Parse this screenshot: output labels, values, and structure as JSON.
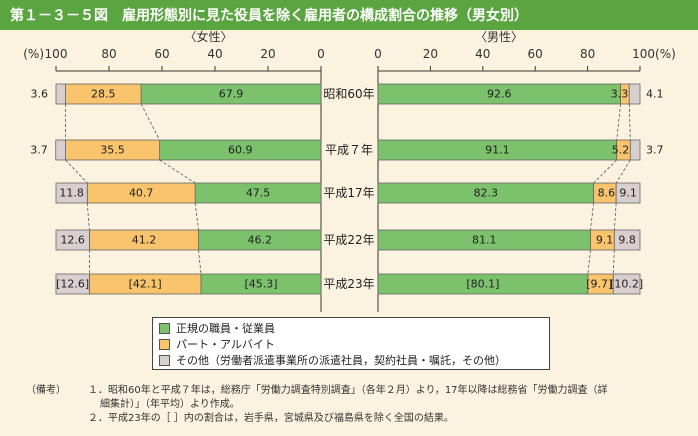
{
  "title": "第１－３－５図　雇用形態別に見た役員を除く雇用者の構成割合の推移（男女別）",
  "chart_data": {
    "type": "bar",
    "orientation": "horizontal-stacked",
    "categories": [
      "昭和60年",
      "平成７年",
      "平成17年",
      "平成22年",
      "平成23年"
    ],
    "female": {
      "panel_label": "〈女性〉",
      "axis_ticks": [
        "100",
        "80",
        "60",
        "40",
        "20",
        "0"
      ],
      "axis_unit": "(%)",
      "series": [
        {
          "name": "正規の職員・従業員",
          "values": [
            67.9,
            60.9,
            47.5,
            46.2,
            45.3
          ]
        },
        {
          "name": "パート・アルバイト",
          "values": [
            28.5,
            35.5,
            40.7,
            41.2,
            42.1
          ]
        },
        {
          "name": "その他（労働者派遣事業所の派遣社員，契約社員・嘱託，その他）",
          "values": [
            3.6,
            3.7,
            11.8,
            12.6,
            12.6
          ]
        }
      ]
    },
    "male": {
      "panel_label": "〈男性〉",
      "axis_ticks": [
        "0",
        "20",
        "40",
        "60",
        "80",
        "100(%)"
      ],
      "series": [
        {
          "name": "正規の職員・従業員",
          "values": [
            92.6,
            91.1,
            82.3,
            81.1,
            80.1
          ]
        },
        {
          "name": "パート・アルバイト",
          "values": [
            3.3,
            5.2,
            8.6,
            9.1,
            9.7
          ]
        },
        {
          "name": "その他（労働者派遣事業所の派遣社員，契約社員・嘱託，その他）",
          "values": [
            4.1,
            3.7,
            9.1,
            9.8,
            10.2
          ]
        }
      ]
    },
    "bracketed_category": "平成23年",
    "xlim": [
      0,
      100
    ],
    "colors": {
      "regular": "#7cc16b",
      "part": "#f9c46b",
      "other": "#d9cfcf"
    }
  },
  "legend": {
    "items": [
      {
        "label": "正規の職員・従業員",
        "color": "#7cc16b"
      },
      {
        "label": "パート・アルバイト",
        "color": "#f9c46b"
      },
      {
        "label": "その他（労働者派遣事業所の派遣社員，契約社員・嘱託，その他）",
        "color": "#d9cfcf"
      }
    ]
  },
  "notes": {
    "prefix": "（備考）",
    "line1": "１．昭和60年と平成７年は，総務庁「労働力調査特別調査」（各年２月）より，17年以降は総務省「労働力調査（詳",
    "line1b": "細集計）」（年平均）より作成。",
    "line2": "２．平成23年の［ ］内の割合は，岩手県，宮城県及び福島県を除く全国の結果。"
  }
}
